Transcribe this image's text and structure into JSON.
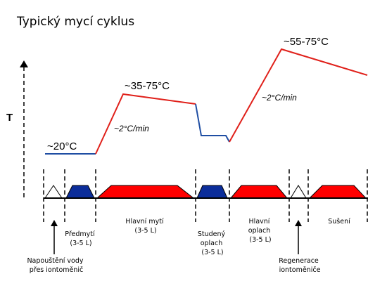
{
  "title": "Typický mycí cyklus",
  "y_axis_label": "T",
  "temperature_labels": {
    "initial": "~20°C",
    "main_wash": "~35-75°C",
    "final_rinse": "~55-75°C"
  },
  "heating_rate_labels": {
    "first": "~2°C/min",
    "second": "~2°C/min"
  },
  "phases": [
    {
      "id": "fill",
      "lines": []
    },
    {
      "id": "prewash",
      "lines": [
        "Předmytí",
        "(3-5 L)"
      ]
    },
    {
      "id": "main-wash",
      "lines": [
        "Hlavní mytí",
        "(3-5 L)"
      ]
    },
    {
      "id": "cold-rinse",
      "lines": [
        "Studený",
        "oplach",
        "(3-5 L)"
      ]
    },
    {
      "id": "main-rinse",
      "lines": [
        "Hlavní",
        "oplach",
        "(3-5 L)"
      ]
    },
    {
      "id": "regeneration",
      "lines": []
    },
    {
      "id": "drying",
      "lines": [
        "Sušení"
      ]
    }
  ],
  "annotations": {
    "fill": [
      "Napouštění vody",
      "přes iontoměnič"
    ],
    "regeneration": [
      "Regenerace",
      "iontoměniče"
    ]
  },
  "colors": {
    "cold": "#1f4ea3",
    "hot": "#e0201a",
    "cold_fill": "#0b2d9a",
    "hot_fill": "#ff0000",
    "outline": "#000000"
  }
}
